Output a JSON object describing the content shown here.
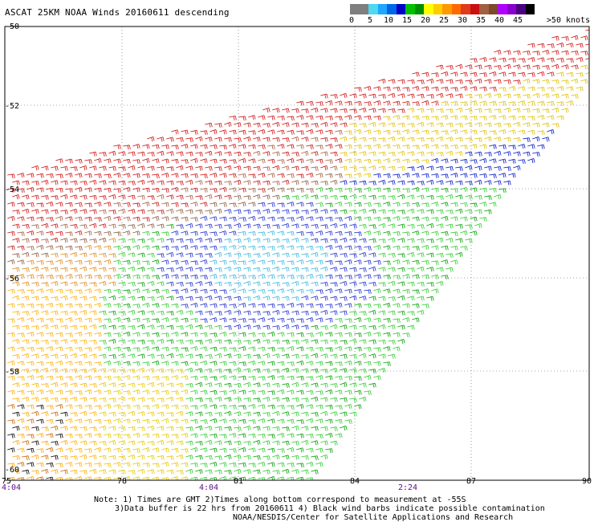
{
  "title": "ASCAT 25KM NOAA Winds 20160611 descending",
  "colorbar": {
    "labels": [
      "0",
      "5",
      "10",
      "15",
      "20",
      "25",
      "30",
      "35",
      "40",
      "45",
      ">50 knots"
    ],
    "colors": [
      "#7f7f7f",
      "#7f7f7f",
      "#4dd9f0",
      "#1fa6ff",
      "#0066e8",
      "#0000c8",
      "#00c000",
      "#008f00",
      "#ffff00",
      "#ffcc00",
      "#ff9900",
      "#ff6a00",
      "#e23a1c",
      "#c81010",
      "#a06040",
      "#7a4a2a",
      "#b000ff",
      "#8800cc",
      "#4b0082",
      "#000000"
    ]
  },
  "axes": {
    "lat_labels": [
      "-50",
      "-52",
      "-54",
      "-56",
      "-58",
      "-60"
    ],
    "lon_labels": [
      "75",
      "78",
      "81",
      "84",
      "87",
      "90"
    ],
    "time_labels": [
      "4:04",
      "4:04",
      "2:24"
    ]
  },
  "notes": {
    "line1": "Note: 1) Times are GMT 2)Times along bottom correspond to measurement at -55S",
    "line2": "3)Data buffer is 22 hrs from 20160611 4) Black wind barbs indicate possible contamination",
    "line3": "NOAA/NESDIS/Center for Satellite Applications and Research"
  }
}
